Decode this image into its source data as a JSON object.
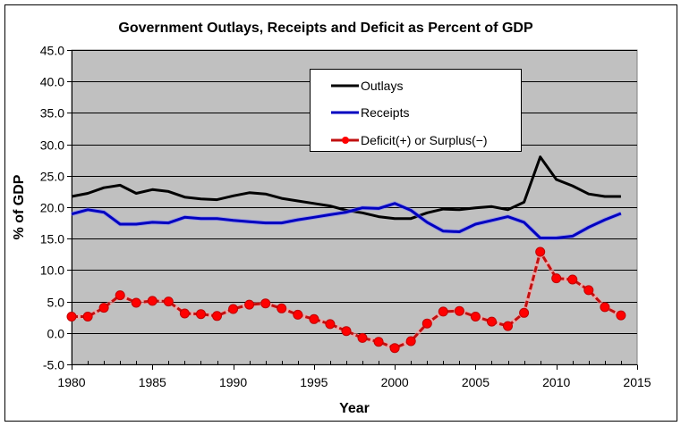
{
  "chart_data": {
    "type": "line",
    "title": "Government Outlays, Receipts and Deficit as Percent of GDP",
    "xlabel": "Year",
    "ylabel": "% of GDP",
    "xlim": [
      1980,
      2015
    ],
    "ylim": [
      -5,
      45
    ],
    "x_ticks": [
      "1980",
      "1985",
      "1990",
      "1995",
      "2000",
      "2005",
      "2010",
      "2015"
    ],
    "x_tick_values": [
      1980,
      1985,
      1990,
      1995,
      2000,
      2005,
      2010,
      2015
    ],
    "y_ticks": [
      "45.0",
      "40.0",
      "35.0",
      "30.0",
      "25.0",
      "20.0",
      "15.0",
      "10.0",
      "5.0",
      "0.0",
      "-5.0"
    ],
    "y_tick_values": [
      45,
      40,
      35,
      30,
      25,
      20,
      15,
      10,
      5,
      0,
      -5
    ],
    "grid": true,
    "legend_position": "top-center",
    "background_color": "#c0c0c0",
    "x": [
      1980,
      1981,
      1982,
      1983,
      1984,
      1985,
      1986,
      1987,
      1988,
      1989,
      1990,
      1991,
      1992,
      1993,
      1994,
      1995,
      1996,
      1997,
      1998,
      1999,
      2000,
      2001,
      2002,
      2003,
      2004,
      2005,
      2006,
      2007,
      2008,
      2009,
      2010,
      2011,
      2012,
      2013,
      2014
    ],
    "series": [
      {
        "name": "Outlays",
        "color": "#000000",
        "marker": false,
        "values": [
          21.7,
          22.2,
          23.1,
          23.5,
          22.2,
          22.8,
          22.5,
          21.6,
          21.3,
          21.2,
          21.8,
          22.3,
          22.1,
          21.4,
          21.0,
          20.6,
          20.2,
          19.5,
          19.1,
          18.5,
          18.2,
          18.2,
          19.1,
          19.7,
          19.6,
          19.9,
          20.1,
          19.6,
          20.8,
          28.0,
          24.4,
          23.4,
          22.1,
          21.7,
          21.7
        ]
      },
      {
        "name": "Receipts",
        "color": "#0000c0",
        "marker": false,
        "values": [
          18.9,
          19.6,
          19.2,
          17.3,
          17.3,
          17.6,
          17.5,
          18.4,
          18.2,
          18.2,
          17.9,
          17.7,
          17.5,
          17.5,
          18.0,
          18.4,
          18.8,
          19.2,
          19.9,
          19.8,
          20.6,
          19.5,
          17.6,
          16.2,
          16.1,
          17.3,
          17.9,
          18.5,
          17.6,
          15.1,
          15.1,
          15.4,
          16.8,
          18.0,
          19.0
        ]
      },
      {
        "name": "Deficit(+) or Surplus(−)",
        "color": "#c01010",
        "marker": true,
        "marker_color": "#ff0000",
        "values": [
          2.6,
          2.6,
          4.0,
          6.0,
          4.8,
          5.1,
          5.0,
          3.1,
          3.0,
          2.7,
          3.8,
          4.5,
          4.7,
          3.9,
          2.9,
          2.2,
          1.4,
          0.3,
          -0.8,
          -1.4,
          -2.4,
          -1.3,
          1.5,
          3.4,
          3.5,
          2.6,
          1.8,
          1.1,
          3.2,
          12.9,
          8.7,
          8.5,
          6.8,
          4.1,
          2.8
        ]
      }
    ]
  }
}
